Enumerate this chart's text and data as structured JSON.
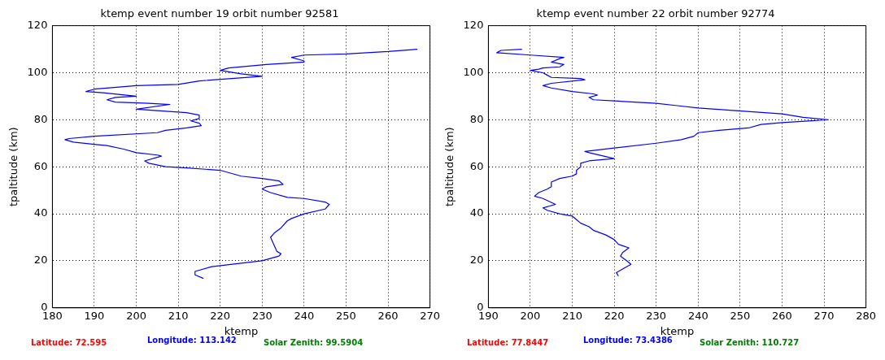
{
  "chart_data": [
    {
      "type": "line",
      "title": "ktemp event number 19 orbit number 92581",
      "xlabel": "ktemp",
      "ylabel": "tpaltitude (km)",
      "xlim": [
        180,
        270
      ],
      "xticks": [
        180,
        190,
        200,
        210,
        220,
        230,
        240,
        250,
        260,
        270
      ],
      "ylim": [
        0,
        120
      ],
      "yticks": [
        0,
        20,
        40,
        60,
        80,
        100,
        120
      ],
      "grid": true,
      "legend": false,
      "series": [
        {
          "color": "#0000ff",
          "x": [
            216,
            214,
            214,
            218,
            225,
            230,
            234,
            234.5,
            233.5,
            233,
            232.5,
            232,
            233,
            234.5,
            236,
            237,
            240,
            245,
            246,
            245,
            240,
            236,
            232,
            230,
            231,
            235,
            234,
            230,
            225,
            220,
            212,
            207,
            203,
            202,
            206,
            205,
            200,
            197,
            193,
            190,
            185,
            183,
            184,
            190,
            205,
            207,
            212,
            215.5,
            215,
            213,
            215,
            215,
            212,
            200,
            208,
            203,
            195,
            193,
            195,
            200,
            192,
            188,
            190,
            200,
            210,
            215,
            230,
            225,
            220,
            222,
            231,
            240,
            240,
            237,
            240,
            250,
            260,
            267
          ],
          "values": [
            12.5,
            14,
            15.5,
            17.5,
            19,
            20,
            22,
            23,
            24,
            26,
            28,
            30,
            32,
            34,
            37,
            38,
            40,
            42,
            44,
            45,
            46.5,
            47,
            49,
            50.5,
            51.5,
            52.5,
            54,
            55,
            56,
            58.5,
            59.5,
            60,
            61.5,
            62.5,
            64.5,
            65,
            66,
            67.5,
            69,
            69.5,
            70.5,
            71.5,
            72,
            73,
            74.5,
            75.5,
            76.5,
            77.5,
            78.5,
            79.5,
            80.5,
            82,
            83,
            84.5,
            86.5,
            87,
            87.5,
            88.5,
            89.5,
            90,
            91.5,
            92,
            93,
            94.5,
            95,
            96.5,
            98.5,
            99.5,
            101,
            102,
            103.5,
            104.5,
            105,
            106.5,
            107.5,
            108,
            109,
            110
          ]
        }
      ],
      "annotations": [
        "Latitude: 72.595",
        "Longitude: 113.142",
        "Solar Zenith: 99.5904"
      ]
    },
    {
      "type": "line",
      "title": "ktemp event number 22 orbit number 92774",
      "xlabel": "ktemp",
      "ylabel": "tpaltitude (km)",
      "xlim": [
        190,
        280
      ],
      "xticks": [
        190,
        200,
        210,
        220,
        230,
        240,
        250,
        260,
        270,
        280
      ],
      "ylim": [
        0,
        120
      ],
      "yticks": [
        0,
        20,
        40,
        60,
        80,
        100,
        120
      ],
      "grid": true,
      "legend": false,
      "series": [
        {
          "color": "#0000ff",
          "x": [
            221,
            220.5,
            222,
            224,
            223,
            221.5,
            222,
            223.5,
            221,
            220,
            218,
            215,
            214,
            212,
            211,
            210,
            207,
            204,
            203,
            206,
            203,
            201,
            202,
            204,
            205,
            205,
            207,
            210,
            211,
            211,
            212,
            212,
            214,
            220,
            214,
            213,
            220,
            230,
            236,
            239,
            240,
            245,
            252,
            255,
            260,
            271,
            265,
            260,
            240,
            235,
            230,
            220,
            215,
            214,
            216,
            215,
            210,
            205,
            203,
            205,
            213,
            212,
            205,
            204,
            203,
            200,
            202,
            203,
            207,
            208,
            205,
            207,
            208,
            200,
            192,
            193,
            198
          ],
          "values": [
            13.5,
            15,
            16.5,
            18.5,
            20,
            22,
            23.5,
            25.5,
            27,
            29,
            31,
            33,
            34.5,
            36,
            37.5,
            39,
            40,
            41.5,
            42.5,
            44,
            46.5,
            47.5,
            49,
            50.5,
            51.5,
            53.5,
            55,
            56,
            57,
            58.5,
            60,
            61.5,
            62.5,
            63.5,
            66,
            66.5,
            68,
            70,
            71.5,
            73,
            74.5,
            75.5,
            76.5,
            78,
            78.8,
            80,
            81,
            82.5,
            85,
            86,
            87,
            88,
            88.5,
            89.5,
            90.5,
            91,
            92,
            93.5,
            94.5,
            95.5,
            97,
            97.5,
            98,
            99,
            100,
            101,
            101.5,
            102,
            102.5,
            103.5,
            104.5,
            106,
            106.5,
            107.5,
            108.5,
            109.5,
            110
          ]
        }
      ],
      "annotations": [
        "Latitude: 77.8447",
        "Longitude: 73.4386",
        "Solar Zenith: 110.727"
      ]
    }
  ]
}
